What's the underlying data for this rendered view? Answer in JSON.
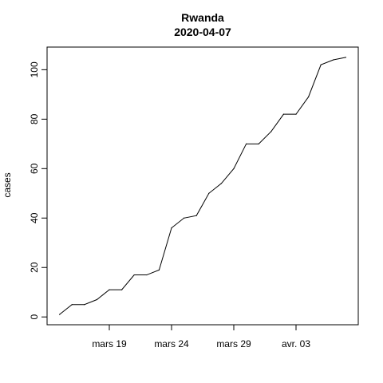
{
  "chart_data": {
    "type": "line",
    "title": "Rwanda",
    "subtitle": "2020-04-07",
    "xlabel": "",
    "ylabel": "cases",
    "x": [
      "2020-03-15",
      "2020-03-16",
      "2020-03-17",
      "2020-03-18",
      "2020-03-19",
      "2020-03-20",
      "2020-03-21",
      "2020-03-22",
      "2020-03-23",
      "2020-03-24",
      "2020-03-25",
      "2020-03-26",
      "2020-03-27",
      "2020-03-28",
      "2020-03-29",
      "2020-03-30",
      "2020-03-31",
      "2020-04-01",
      "2020-04-02",
      "2020-04-03",
      "2020-04-04",
      "2020-04-05",
      "2020-04-06",
      "2020-04-07"
    ],
    "series": [
      {
        "values": [
          1,
          5,
          5,
          7,
          11,
          11,
          17,
          17,
          19,
          36,
          40,
          41,
          50,
          54,
          60,
          70,
          70,
          75,
          82,
          82,
          89,
          102,
          104,
          105
        ],
        "color": "#000000"
      }
    ],
    "xticks": [
      {
        "date": "2020-03-19",
        "label": "mars 19"
      },
      {
        "date": "2020-03-24",
        "label": "mars 24"
      },
      {
        "date": "2020-03-29",
        "label": "mars 29"
      },
      {
        "date": "2020-04-03",
        "label": "avr. 03"
      }
    ],
    "yticks": [
      0,
      20,
      40,
      60,
      80,
      100
    ],
    "xlim": [
      "2020-03-14",
      "2020-04-08"
    ],
    "ylim": [
      -3.16,
      109.16
    ],
    "grid": false
  }
}
